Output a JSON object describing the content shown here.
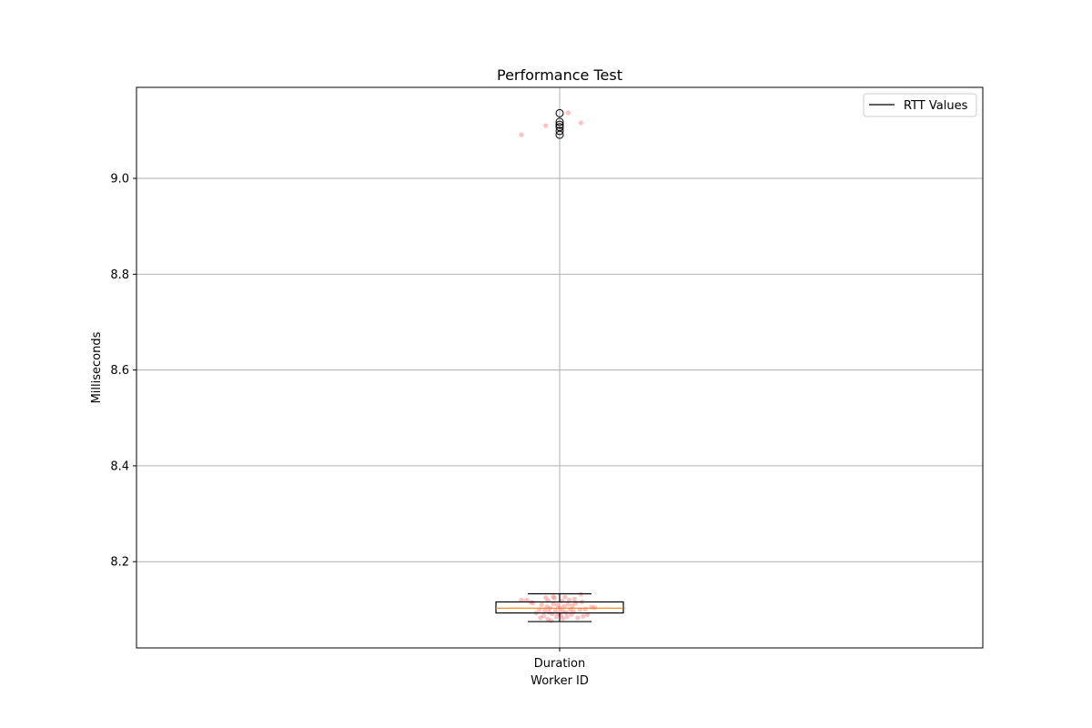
{
  "chart_data": {
    "type": "box",
    "title": "Performance Test",
    "xlabel": "Worker ID",
    "ylabel": "Milliseconds",
    "categories": [
      "Duration"
    ],
    "ylim": [
      8.02,
      9.19
    ],
    "yticks": [
      8.2,
      8.4,
      8.6,
      8.8,
      9.0
    ],
    "ytick_labels": [
      "8.2",
      "8.4",
      "8.6",
      "8.8",
      "9.0"
    ],
    "grid": true,
    "legend": {
      "placement": "top-right",
      "entries": [
        {
          "label": "RTT Values",
          "marker": "line",
          "color": "#000000"
        }
      ]
    },
    "box": {
      "q1": 8.093,
      "median": 8.103,
      "q3": 8.116,
      "whisker_low": 8.075,
      "whisker_high": 8.133,
      "outliers": [
        9.136,
        9.118,
        9.112,
        9.107,
        9.099,
        9.091
      ],
      "box_color": "#000000",
      "median_color": "#ff7f0e",
      "outlier_color": "#000000"
    },
    "jitter_points": {
      "color": "#ff6666",
      "opacity": 0.4,
      "points": [
        {
          "x": -0.36,
          "y": 9.091
        },
        {
          "x": -0.13,
          "y": 9.11
        },
        {
          "x": 0.02,
          "y": 9.102
        },
        {
          "x": 0.08,
          "y": 9.137
        },
        {
          "x": 0.2,
          "y": 9.116
        },
        {
          "x": -0.36,
          "y": 8.12
        },
        {
          "x": -0.31,
          "y": 8.12
        },
        {
          "x": -0.27,
          "y": 8.115
        },
        {
          "x": -0.25,
          "y": 8.114
        },
        {
          "x": -0.22,
          "y": 8.093
        },
        {
          "x": -0.19,
          "y": 8.1
        },
        {
          "x": -0.17,
          "y": 8.11
        },
        {
          "x": -0.15,
          "y": 8.087
        },
        {
          "x": -0.14,
          "y": 8.098
        },
        {
          "x": -0.13,
          "y": 8.125
        },
        {
          "x": -0.12,
          "y": 8.106
        },
        {
          "x": -0.11,
          "y": 8.08
        },
        {
          "x": -0.1,
          "y": 8.095
        },
        {
          "x": -0.09,
          "y": 8.103
        },
        {
          "x": -0.08,
          "y": 8.077
        },
        {
          "x": -0.07,
          "y": 8.091
        },
        {
          "x": -0.06,
          "y": 8.112
        },
        {
          "x": -0.05,
          "y": 8.124
        },
        {
          "x": -0.04,
          "y": 8.098
        },
        {
          "x": -0.03,
          "y": 8.085
        },
        {
          "x": -0.02,
          "y": 8.109
        },
        {
          "x": -0.01,
          "y": 8.092
        },
        {
          "x": 0.0,
          "y": 8.103
        },
        {
          "x": 0.01,
          "y": 8.088
        },
        {
          "x": 0.02,
          "y": 8.118
        },
        {
          "x": 0.03,
          "y": 8.097
        },
        {
          "x": 0.04,
          "y": 8.107
        },
        {
          "x": 0.05,
          "y": 8.126
        },
        {
          "x": 0.06,
          "y": 8.094
        },
        {
          "x": 0.07,
          "y": 8.085
        },
        {
          "x": 0.08,
          "y": 8.111
        },
        {
          "x": 0.09,
          "y": 8.12
        },
        {
          "x": 0.1,
          "y": 8.1
        },
        {
          "x": 0.11,
          "y": 8.09
        },
        {
          "x": 0.12,
          "y": 8.108
        },
        {
          "x": 0.13,
          "y": 8.096
        },
        {
          "x": 0.15,
          "y": 8.113
        },
        {
          "x": 0.17,
          "y": 8.083
        },
        {
          "x": 0.19,
          "y": 8.1
        },
        {
          "x": 0.2,
          "y": 8.132
        },
        {
          "x": 0.21,
          "y": 8.116
        },
        {
          "x": 0.22,
          "y": 8.086
        },
        {
          "x": 0.24,
          "y": 8.101
        },
        {
          "x": 0.26,
          "y": 8.089
        },
        {
          "x": 0.3,
          "y": 8.105
        },
        {
          "x": 0.33,
          "y": 8.104
        },
        {
          "x": -0.18,
          "y": 8.083
        },
        {
          "x": -0.06,
          "y": 8.127
        },
        {
          "x": 0.03,
          "y": 8.082
        },
        {
          "x": 0.14,
          "y": 8.122
        },
        {
          "x": -0.11,
          "y": 8.119
        }
      ]
    }
  }
}
